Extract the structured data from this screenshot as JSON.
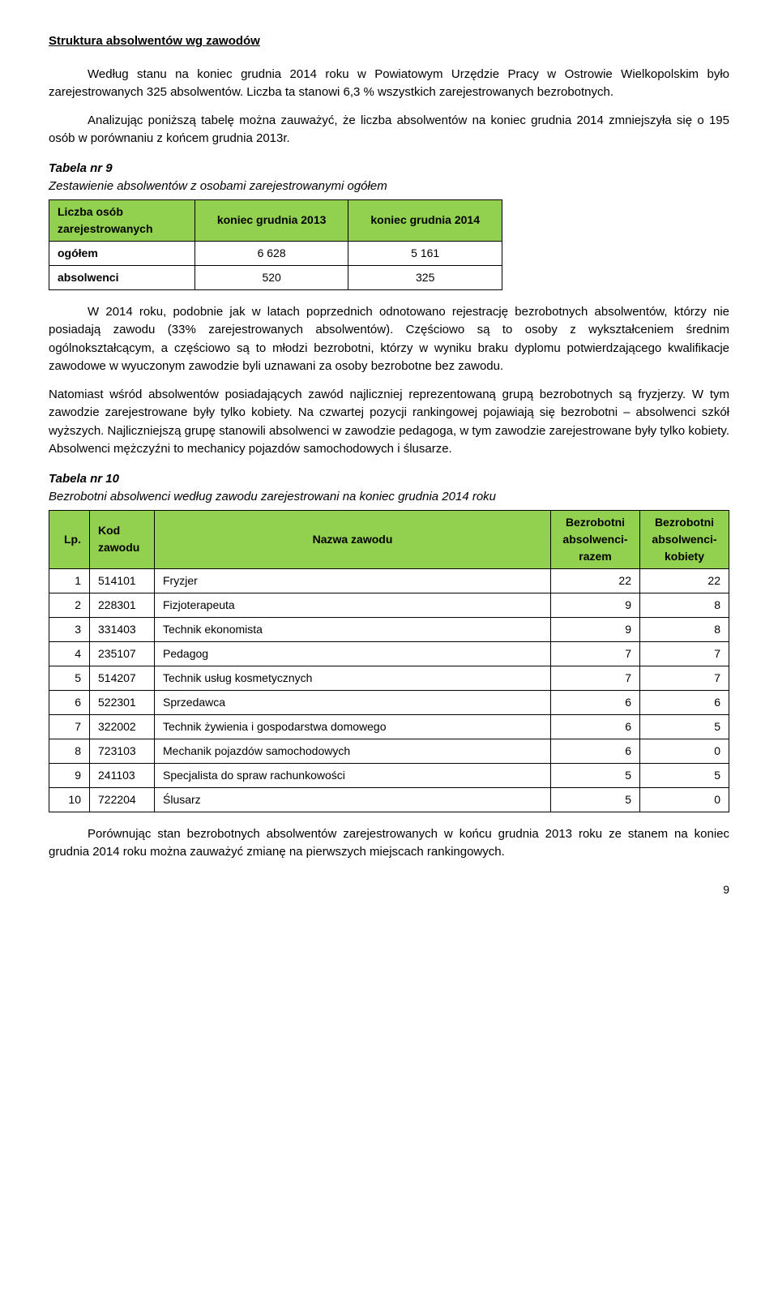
{
  "sectionTitle": "Struktura absolwentów wg zawodów",
  "para1": "Według stanu na koniec grudnia 2014 roku w Powiatowym Urzędzie Pracy w Ostrowie Wielkopolskim było zarejestrowanych 325 absolwentów. Liczba ta stanowi 6,3 % wszystkich zarejestrowanych bezrobotnych.",
  "para2": "Analizując poniższą tabelę można zauważyć, że liczba absolwentów na koniec grudnia 2014 zmniejszyła się o 195 osób w porównaniu z końcem grudnia 2013r.",
  "table9": {
    "caption": "Tabela nr 9",
    "sub": "Zestawienie absolwentów z osobami zarejestrowanymi ogółem",
    "headers": [
      "Liczba osób zarejestrowanych",
      "koniec grudnia 2013",
      "koniec grudnia 2014"
    ],
    "rows": [
      [
        "ogółem",
        "6 628",
        "5 161"
      ],
      [
        "absolwenci",
        "520",
        "325"
      ]
    ],
    "header_bg": "#92d050"
  },
  "para3": "W 2014 roku, podobnie jak w latach poprzednich odnotowano rejestrację bezrobotnych absolwentów, którzy nie posiadają zawodu (33% zarejestrowanych absolwentów). Częściowo są to osoby z wykształceniem średnim ogólnokształcącym, a częściowo są to młodzi bezrobotni, którzy w wyniku braku dyplomu potwierdzającego kwalifikacje zawodowe w wyuczonym zawodzie byli uznawani za osoby bezrobotne bez zawodu.",
  "para4": "Natomiast wśród absolwentów posiadających zawód najliczniej reprezentowaną grupą bezrobotnych są fryzjerzy. W tym zawodzie zarejestrowane były tylko kobiety. Na czwartej pozycji rankingowej pojawiają się bezrobotni – absolwenci szkół wyższych. Najliczniejszą grupę stanowili absolwenci w zawodzie pedagoga, w tym zawodzie zarejestrowane były tylko kobiety. Absolwenci mężczyźni to mechanicy pojazdów samochodowych i ślusarze.",
  "table10": {
    "caption": "Tabela nr 10",
    "sub": "Bezrobotni absolwenci według zawodu zarejestrowani na koniec grudnia 2014 roku",
    "headers": [
      "Lp.",
      "Kod zawodu",
      "Nazwa zawodu",
      "Bezrobotni absolwenci- razem",
      "Bezrobotni absolwenci- kobiety"
    ],
    "rows": [
      [
        "1",
        "514101",
        "Fryzjer",
        "22",
        "22"
      ],
      [
        "2",
        "228301",
        "Fizjoterapeuta",
        "9",
        "8"
      ],
      [
        "3",
        "331403",
        "Technik ekonomista",
        "9",
        "8"
      ],
      [
        "4",
        "235107",
        "Pedagog",
        "7",
        "7"
      ],
      [
        "5",
        "514207",
        "Technik usług kosmetycznych",
        "7",
        "7"
      ],
      [
        "6",
        "522301",
        "Sprzedawca",
        "6",
        "6"
      ],
      [
        "7",
        "322002",
        "Technik żywienia i gospodarstwa domowego",
        "6",
        "5"
      ],
      [
        "8",
        "723103",
        "Mechanik pojazdów samochodowych",
        "6",
        "0"
      ],
      [
        "9",
        "241103",
        "Specjalista do spraw rachunkowości",
        "5",
        "5"
      ],
      [
        "10",
        "722204",
        "Ślusarz",
        "5",
        "0"
      ]
    ],
    "header_bg": "#92d050"
  },
  "para5": "Porównując stan bezrobotnych absolwentów zarejestrowanych w końcu grudnia 2013 roku ze stanem na koniec grudnia 2014 roku można zauważyć zmianę na pierwszych miejscach rankingowych.",
  "pageNumber": "9"
}
